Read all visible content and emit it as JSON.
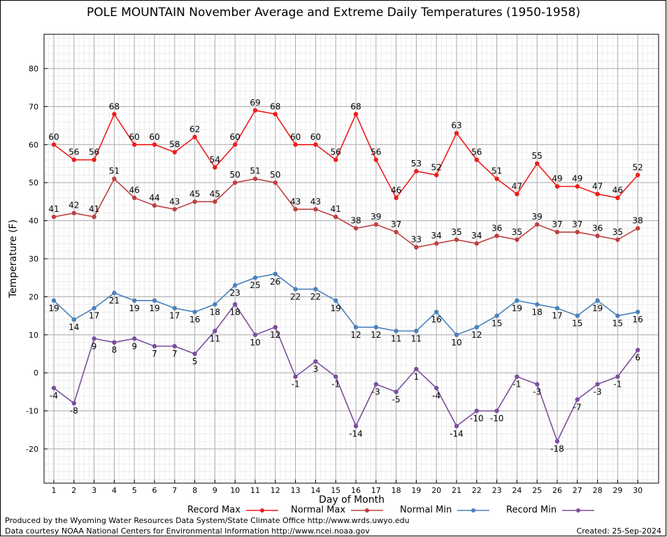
{
  "chart_data": {
    "type": "line",
    "title": "POLE MOUNTAIN November Average and Extreme Daily Temperatures (1950-1958)",
    "xlabel": "Day of Month",
    "ylabel": "Temperature (F)",
    "x": [
      1,
      2,
      3,
      4,
      5,
      6,
      7,
      8,
      9,
      10,
      11,
      12,
      13,
      14,
      15,
      16,
      17,
      18,
      19,
      20,
      21,
      22,
      23,
      24,
      25,
      26,
      27,
      28,
      29,
      30
    ],
    "ylim": [
      -29,
      89
    ],
    "yticks": [
      -20,
      -10,
      0,
      10,
      20,
      30,
      40,
      50,
      60,
      70,
      80
    ],
    "grid": true,
    "legend_position": "bottom",
    "series": [
      {
        "name": "Record Max",
        "color": "#ee1c1c",
        "values": [
          60,
          56,
          56,
          68,
          60,
          60,
          58,
          62,
          54,
          60,
          69,
          68,
          60,
          60,
          56,
          68,
          56,
          46,
          53,
          52,
          63,
          56,
          51,
          47,
          55,
          49,
          49,
          47,
          46,
          52
        ]
      },
      {
        "name": "Normal Max",
        "color": "#bf4040",
        "values": [
          41,
          42,
          41,
          51,
          46,
          44,
          43,
          45,
          45,
          50,
          51,
          50,
          43,
          43,
          41,
          38,
          39,
          37,
          33,
          34,
          35,
          34,
          36,
          35,
          39,
          37,
          37,
          36,
          35,
          38
        ]
      },
      {
        "name": "Normal Min",
        "color": "#4a80bb",
        "values": [
          19,
          14,
          17,
          21,
          19,
          19,
          17,
          16,
          18,
          23,
          25,
          26,
          22,
          22,
          19,
          12,
          12,
          11,
          11,
          16,
          10,
          12,
          15,
          19,
          18,
          17,
          15,
          19,
          15,
          16
        ]
      },
      {
        "name": "Record Min",
        "color": "#7b4f9e",
        "values": [
          -4,
          -8,
          9,
          8,
          9,
          7,
          7,
          5,
          11,
          18,
          10,
          12,
          -1,
          3,
          -1,
          -14,
          -3,
          -5,
          1,
          -4,
          -14,
          -10,
          -10,
          -1,
          -3,
          -18,
          -7,
          -3,
          -1,
          6
        ]
      }
    ]
  },
  "footer": {
    "produced_by": "Produced by the Wyoming Water Resources Data System/State Climate Office http://www.wrds.uwyo.edu",
    "courtesy": "Data courtesy NOAA National Centers for Environmental Information http://www.ncei.noaa.gov",
    "created": "Created:  25-Sep-2024"
  }
}
